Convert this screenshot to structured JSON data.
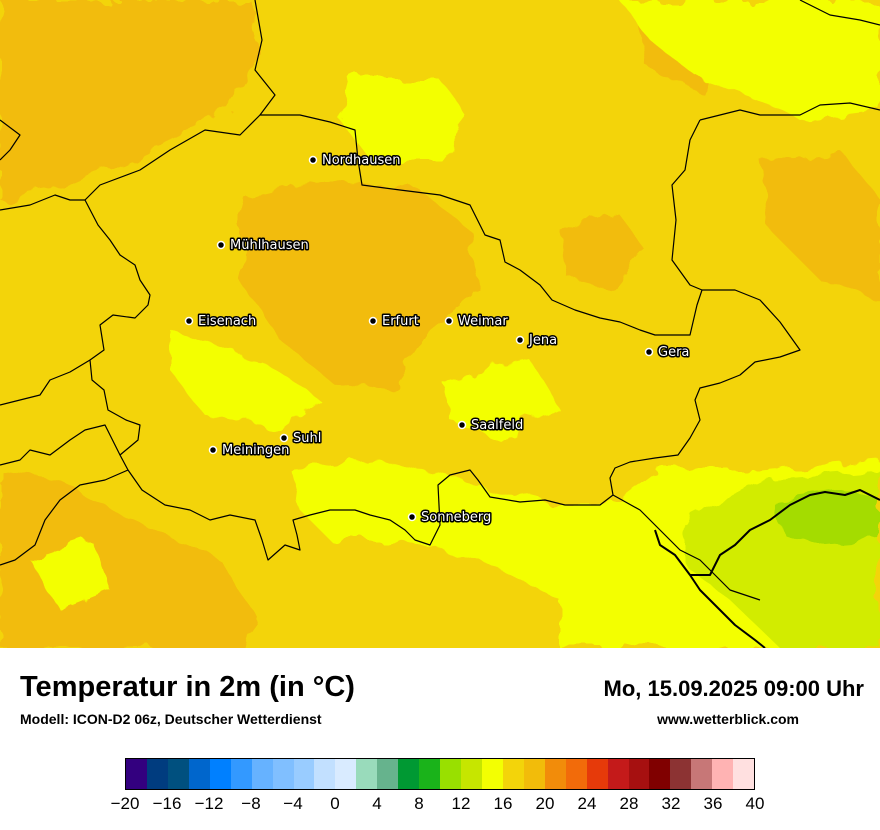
{
  "title": "Temperatur in 2m (in °C)",
  "subtitle": "Modell: ICON-D2 06z, Deutscher Wetterdienst",
  "datetime": "Mo, 15.09.2025 09:00 Uhr",
  "website": "www.wetterblick.com",
  "colors": {
    "base": "#f3d40a",
    "warm": "#f2bc0a",
    "cool": "#f3ff02",
    "cooler": "#d2ec02",
    "coolest": "#a4dc02",
    "border": "#000000"
  },
  "cities": [
    {
      "name": "Nordhausen"
    },
    {
      "name": "Mühlhausen"
    },
    {
      "name": "Eisenach"
    },
    {
      "name": "Erfurt"
    },
    {
      "name": "Weimar"
    },
    {
      "name": "Jena"
    },
    {
      "name": "Gera"
    },
    {
      "name": "Suhl"
    },
    {
      "name": "Meiningen"
    },
    {
      "name": "Saalfeld"
    },
    {
      "name": "Sonneberg"
    }
  ],
  "legend": {
    "colors": [
      "#33007f",
      "#003c7f",
      "#00507f",
      "#0066cc",
      "#0080ff",
      "#3399ff",
      "#66b2ff",
      "#80bfff",
      "#99ccff",
      "#c2e0ff",
      "#d9ebff",
      "#99dbbb",
      "#66b38d",
      "#009933",
      "#1ab31a",
      "#99e000",
      "#c6e600",
      "#f3ff02",
      "#f3d40a",
      "#f2bc0a",
      "#f28c0a",
      "#f26b0a",
      "#e63a0a",
      "#c41a1a",
      "#a61010",
      "#800000",
      "#8c3333",
      "#c77777",
      "#ffb3b3",
      "#ffe0e0"
    ],
    "ticks": [
      "−20",
      "−16",
      "−12",
      "−8",
      "−4",
      "0",
      "4",
      "8",
      "12",
      "16",
      "20",
      "24",
      "28",
      "32",
      "36",
      "40"
    ]
  }
}
